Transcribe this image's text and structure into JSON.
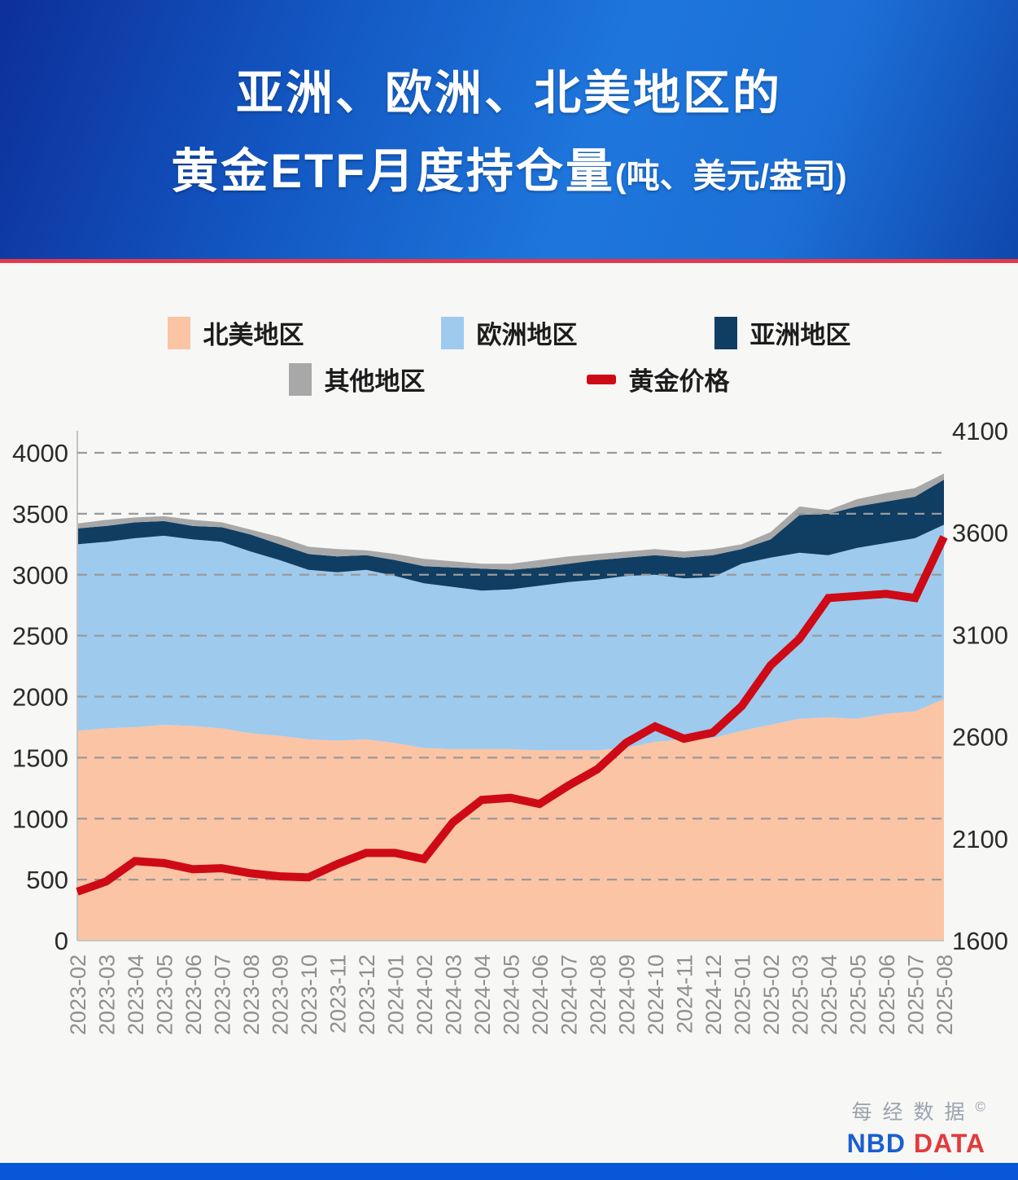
{
  "header": {
    "title_line1": "亚洲、欧洲、北美地区的",
    "title_line2": "黄金ETF月度持仓量",
    "title_unit": "(吨、美元/盎司)"
  },
  "chart_data": {
    "type": "area",
    "stacked": true,
    "grid": "dashed-horizontal",
    "legend_position": "top",
    "x": [
      "2023-02",
      "2023-03",
      "2023-04",
      "2023-05",
      "2023-06",
      "2023-07",
      "2023-08",
      "2023-09",
      "2023-10",
      "2023-11",
      "2023-12",
      "2024-01",
      "2024-02",
      "2024-03",
      "2024-04",
      "2024-05",
      "2024-06",
      "2024-07",
      "2024-08",
      "2024-09",
      "2024-10",
      "2024-11",
      "2024-12",
      "2025-01",
      "2025-02",
      "2025-03",
      "2025-04",
      "2025-05",
      "2025-06",
      "2025-07",
      "2025-08"
    ],
    "left_axis": {
      "min": 0,
      "max": 4000,
      "ticks": [
        0,
        500,
        1000,
        1500,
        2000,
        2500,
        3000,
        3500,
        4000
      ]
    },
    "right_axis": {
      "min": 1600,
      "max": 4100,
      "ticks": [
        1600,
        2100,
        2600,
        3100,
        3600,
        4100
      ]
    },
    "series": [
      {
        "key": "north-america",
        "name": "北美地区",
        "type": "area",
        "axis": "left",
        "color": "#FAC4A5",
        "values": [
          1720,
          1740,
          1750,
          1770,
          1760,
          1740,
          1700,
          1680,
          1650,
          1640,
          1650,
          1620,
          1580,
          1570,
          1570,
          1570,
          1560,
          1560,
          1560,
          1580,
          1630,
          1650,
          1660,
          1720,
          1770,
          1820,
          1830,
          1820,
          1860,
          1880,
          1980
        ]
      },
      {
        "key": "europe",
        "name": "欧洲地区",
        "type": "area",
        "axis": "left",
        "color": "#9ECAEE",
        "values": [
          1530,
          1530,
          1550,
          1550,
          1530,
          1530,
          1490,
          1440,
          1390,
          1380,
          1390,
          1370,
          1350,
          1330,
          1300,
          1310,
          1350,
          1380,
          1400,
          1410,
          1370,
          1320,
          1320,
          1370,
          1370,
          1360,
          1330,
          1400,
          1400,
          1420,
          1430
        ]
      },
      {
        "key": "asia",
        "name": "亚洲地区",
        "type": "area",
        "axis": "left",
        "color": "#103E63",
        "values": [
          130,
          130,
          130,
          120,
          110,
          120,
          140,
          130,
          130,
          130,
          120,
          130,
          140,
          160,
          180,
          160,
          150,
          150,
          160,
          150,
          160,
          170,
          180,
          120,
          150,
          310,
          340,
          340,
          340,
          340,
          370
        ]
      },
      {
        "key": "others",
        "name": "其他地区",
        "type": "area",
        "axis": "left",
        "color": "#A8A8A8",
        "values": [
          40,
          50,
          40,
          40,
          50,
          40,
          40,
          60,
          60,
          60,
          40,
          50,
          60,
          50,
          40,
          50,
          60,
          60,
          50,
          50,
          50,
          50,
          50,
          40,
          60,
          70,
          30,
          60,
          70,
          70,
          50
        ]
      },
      {
        "key": "gold-price",
        "name": "黄金价格",
        "type": "line",
        "axis": "right",
        "color": "#CE0A16",
        "values": [
          1840,
          1890,
          1990,
          1980,
          1950,
          1955,
          1930,
          1915,
          1910,
          1975,
          2030,
          2030,
          2000,
          2180,
          2290,
          2300,
          2270,
          2360,
          2440,
          2570,
          2650,
          2590,
          2620,
          2750,
          2950,
          3080,
          3280,
          3290,
          3300,
          3280,
          3580
        ]
      }
    ]
  },
  "style": {
    "grid_color": "#9a9a9a",
    "axis_line_color": "#c4c4c4",
    "left_tick_color": "#2b2b2b",
    "right_tick_color": "#2b2b2b",
    "x_tick_color": "#8f8f8f",
    "header_divider_color": "#e23a4a",
    "bottom_bar_color": "#0857d8"
  },
  "footer": {
    "brand_cn": "每经数据",
    "copyright": "©",
    "brand_en_blue": "NBD",
    "brand_en_red": "DATA"
  }
}
